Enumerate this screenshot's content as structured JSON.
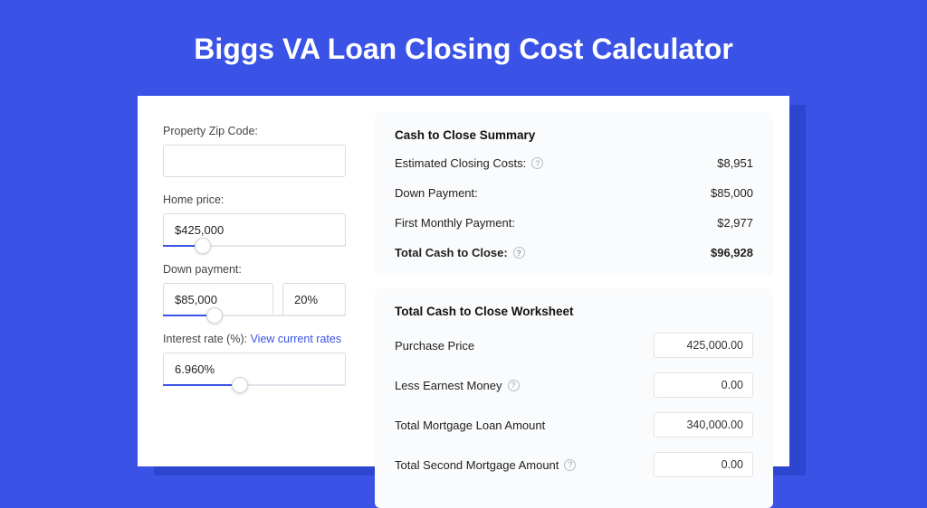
{
  "colors": {
    "page_bg": "#3a53e6",
    "shadow_bg": "#2e45cf",
    "card_bg": "#ffffff",
    "panel_bg": "#fafbfc",
    "accent": "#3a53e6",
    "text": "#222222",
    "muted": "#444444",
    "border": "#dcdcdc",
    "slider_track": "#e2e6ec"
  },
  "hero": {
    "title": "Biggs VA Loan Closing Cost Calculator"
  },
  "inputs": {
    "zip": {
      "label": "Property Zip Code:",
      "value": ""
    },
    "home_price": {
      "label": "Home price:",
      "value": "$425,000",
      "slider_pct": 22
    },
    "down_payment": {
      "label": "Down payment:",
      "value": "$85,000",
      "pct_value": "20%",
      "slider_pct": 28
    },
    "interest": {
      "label_prefix": "Interest rate (%): ",
      "link_text": "View current rates",
      "value": "6.960%",
      "slider_pct": 42
    }
  },
  "summary": {
    "title": "Cash to Close Summary",
    "rows": [
      {
        "label": "Estimated Closing Costs:",
        "help": true,
        "value": "$8,951",
        "bold": false
      },
      {
        "label": "Down Payment:",
        "help": false,
        "value": "$85,000",
        "bold": false
      },
      {
        "label": "First Monthly Payment:",
        "help": false,
        "value": "$2,977",
        "bold": false
      },
      {
        "label": "Total Cash to Close:",
        "help": true,
        "value": "$96,928",
        "bold": true
      }
    ]
  },
  "worksheet": {
    "title": "Total Cash to Close Worksheet",
    "rows": [
      {
        "label": "Purchase Price",
        "help": false,
        "value": "425,000.00"
      },
      {
        "label": "Less Earnest Money",
        "help": true,
        "value": "0.00"
      },
      {
        "label": "Total Mortgage Loan Amount",
        "help": false,
        "value": "340,000.00"
      },
      {
        "label": "Total Second Mortgage Amount",
        "help": true,
        "value": "0.00"
      }
    ]
  }
}
